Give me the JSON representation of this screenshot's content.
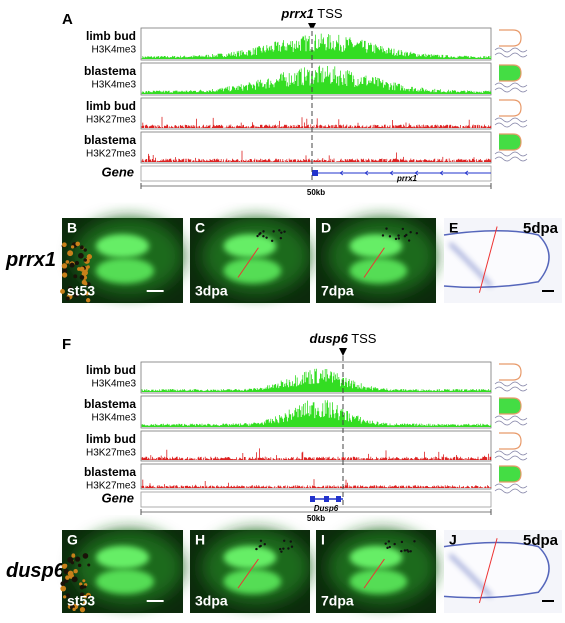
{
  "panel_a": {
    "label": "A",
    "gene_symbol": "prrx1",
    "tss": "TSS",
    "tracks": [
      {
        "tissue": "limb bud",
        "mark": "H3K4me3"
      },
      {
        "tissue": "blastema",
        "mark": "H3K4me3"
      },
      {
        "tissue": "limb bud",
        "mark": "H3K27me3"
      },
      {
        "tissue": "blastema",
        "mark": "H3K27me3"
      }
    ],
    "gene_row_label": "Gene",
    "gene_name": "prrx1",
    "scale": "50kb"
  },
  "row_prrx1": {
    "gene": "prrx1",
    "panels": [
      {
        "label": "B",
        "stage": "st53"
      },
      {
        "label": "C",
        "stage": "3dpa"
      },
      {
        "label": "D",
        "stage": "7dpa"
      },
      {
        "label": "E",
        "stage": "5dpa"
      }
    ]
  },
  "panel_f": {
    "label": "F",
    "gene_symbol": "dusp6",
    "tss": "TSS",
    "tracks": [
      {
        "tissue": "limb bud",
        "mark": "H3K4me3"
      },
      {
        "tissue": "blastema",
        "mark": "H3K4me3"
      },
      {
        "tissue": "limb bud",
        "mark": "H3K27me3"
      },
      {
        "tissue": "blastema",
        "mark": "H3K27me3"
      }
    ],
    "gene_row_label": "Gene",
    "gene_name": "Dusp6",
    "scale": "50kb"
  },
  "row_dusp6": {
    "gene": "dusp6",
    "panels": [
      {
        "label": "G",
        "stage": "st53"
      },
      {
        "label": "H",
        "stage": "3dpa"
      },
      {
        "label": "I",
        "stage": "7dpa"
      },
      {
        "label": "J",
        "stage": "5dpa"
      }
    ]
  }
}
